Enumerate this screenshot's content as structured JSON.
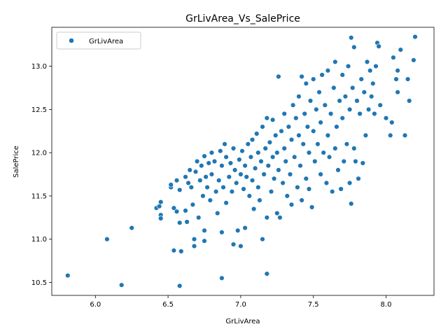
{
  "chart_data": {
    "type": "scatter",
    "title": "GrLivArea_Vs_SalePrice",
    "xlabel": "GrLivArea",
    "ylabel": "SalePrice",
    "xlim": [
      5.7,
      8.33
    ],
    "ylim": [
      10.35,
      13.45
    ],
    "xticks": [
      6.0,
      6.5,
      7.0,
      7.5,
      8.0
    ],
    "yticks": [
      10.5,
      11.0,
      11.5,
      12.0,
      12.5,
      13.0
    ],
    "xtick_labels": [
      "6.0",
      "6.5",
      "7.0",
      "7.5",
      "8.0"
    ],
    "ytick_labels": [
      "10.5",
      "11.0",
      "11.5",
      "12.0",
      "12.5",
      "13.0"
    ],
    "legend": {
      "placement": "top-left",
      "entries": [
        "GrLivArea"
      ]
    },
    "grid": false,
    "marker_color": "#1f77b4",
    "series": [
      {
        "name": "GrLivArea",
        "points": [
          [
            5.81,
            10.58
          ],
          [
            6.08,
            11.0
          ],
          [
            6.18,
            10.47
          ],
          [
            6.25,
            11.13
          ],
          [
            6.42,
            11.36
          ],
          [
            6.44,
            11.38
          ],
          [
            6.45,
            11.43
          ],
          [
            6.45,
            11.28
          ],
          [
            6.45,
            11.24
          ],
          [
            6.52,
            11.6
          ],
          [
            6.52,
            11.63
          ],
          [
            6.54,
            11.36
          ],
          [
            6.54,
            10.87
          ],
          [
            6.56,
            11.68
          ],
          [
            6.56,
            11.32
          ],
          [
            6.58,
            11.57
          ],
          [
            6.58,
            10.46
          ],
          [
            6.58,
            11.19
          ],
          [
            6.59,
            10.86
          ],
          [
            6.62,
            11.72
          ],
          [
            6.62,
            11.33
          ],
          [
            6.63,
            11.2
          ],
          [
            6.64,
            11.65
          ],
          [
            6.65,
            11.8
          ],
          [
            6.66,
            11.6
          ],
          [
            6.67,
            11.4
          ],
          [
            6.68,
            11.0
          ],
          [
            6.68,
            10.92
          ],
          [
            6.69,
            11.78
          ],
          [
            6.7,
            11.9
          ],
          [
            6.71,
            11.25
          ],
          [
            6.72,
            11.68
          ],
          [
            6.73,
            11.85
          ],
          [
            6.74,
            11.5
          ],
          [
            6.75,
            11.96
          ],
          [
            6.75,
            11.1
          ],
          [
            6.75,
            10.98
          ],
          [
            6.76,
            11.72
          ],
          [
            6.77,
            11.6
          ],
          [
            6.78,
            11.88
          ],
          [
            6.79,
            11.45
          ],
          [
            6.8,
            12.0
          ],
          [
            6.8,
            11.75
          ],
          [
            6.82,
            11.9
          ],
          [
            6.83,
            11.55
          ],
          [
            6.84,
            11.3
          ],
          [
            6.85,
            11.68
          ],
          [
            6.86,
            12.02
          ],
          [
            6.87,
            11.85
          ],
          [
            6.87,
            11.08
          ],
          [
            6.87,
            10.55
          ],
          [
            6.88,
            11.6
          ],
          [
            6.89,
            12.1
          ],
          [
            6.9,
            11.95
          ],
          [
            6.9,
            11.42
          ],
          [
            6.92,
            11.72
          ],
          [
            6.93,
            11.88
          ],
          [
            6.94,
            11.55
          ],
          [
            6.95,
            10.94
          ],
          [
            6.95,
            12.05
          ],
          [
            6.96,
            11.8
          ],
          [
            6.97,
            11.65
          ],
          [
            6.98,
            11.1
          ],
          [
            6.99,
            11.92
          ],
          [
            7.0,
            10.92
          ],
          [
            7.0,
            11.75
          ],
          [
            7.01,
            12.02
          ],
          [
            7.02,
            11.58
          ],
          [
            7.03,
            11.13
          ],
          [
            7.03,
            11.85
          ],
          [
            7.04,
            11.72
          ],
          [
            7.05,
            12.1
          ],
          [
            7.06,
            11.5
          ],
          [
            7.07,
            11.95
          ],
          [
            7.08,
            12.15
          ],
          [
            7.08,
            11.68
          ],
          [
            7.09,
            11.35
          ],
          [
            7.1,
            11.82
          ],
          [
            7.11,
            12.22
          ],
          [
            7.12,
            11.6
          ],
          [
            7.12,
            12.0
          ],
          [
            7.13,
            11.45
          ],
          [
            7.14,
            11.9
          ],
          [
            7.15,
            11.0
          ],
          [
            7.15,
            12.3
          ],
          [
            7.16,
            11.75
          ],
          [
            7.17,
            12.05
          ],
          [
            7.18,
            10.6
          ],
          [
            7.18,
            11.25
          ],
          [
            7.18,
            12.4
          ],
          [
            7.19,
            11.85
          ],
          [
            7.2,
            12.12
          ],
          [
            7.21,
            11.55
          ],
          [
            7.22,
            11.95
          ],
          [
            7.22,
            12.38
          ],
          [
            7.23,
            11.7
          ],
          [
            7.24,
            12.2
          ],
          [
            7.25,
            11.3
          ],
          [
            7.25,
            12.0
          ],
          [
            7.26,
            12.88
          ],
          [
            7.26,
            11.8
          ],
          [
            7.27,
            11.25
          ],
          [
            7.28,
            12.25
          ],
          [
            7.29,
            11.65
          ],
          [
            7.3,
            12.05
          ],
          [
            7.3,
            12.45
          ],
          [
            7.31,
            11.9
          ],
          [
            7.32,
            11.5
          ],
          [
            7.33,
            12.3
          ],
          [
            7.34,
            11.75
          ],
          [
            7.35,
            12.15
          ],
          [
            7.35,
            11.4
          ],
          [
            7.36,
            12.55
          ],
          [
            7.37,
            11.95
          ],
          [
            7.38,
            12.4
          ],
          [
            7.39,
            11.6
          ],
          [
            7.4,
            12.2
          ],
          [
            7.4,
            12.65
          ],
          [
            7.41,
            11.85
          ],
          [
            7.42,
            12.88
          ],
          [
            7.42,
            11.45
          ],
          [
            7.43,
            12.1
          ],
          [
            7.44,
            12.45
          ],
          [
            7.45,
            11.7
          ],
          [
            7.45,
            12.8
          ],
          [
            7.46,
            12.3
          ],
          [
            7.47,
            11.58
          ],
          [
            7.47,
            12.0
          ],
          [
            7.48,
            12.6
          ],
          [
            7.49,
            11.37
          ],
          [
            7.5,
            12.25
          ],
          [
            7.5,
            12.85
          ],
          [
            7.51,
            11.9
          ],
          [
            7.52,
            12.5
          ],
          [
            7.53,
            12.1
          ],
          [
            7.54,
            12.7
          ],
          [
            7.55,
            11.75
          ],
          [
            7.55,
            12.35
          ],
          [
            7.56,
            12.9
          ],
          [
            7.57,
            12.0
          ],
          [
            7.58,
            12.55
          ],
          [
            7.59,
            11.65
          ],
          [
            7.6,
            12.2
          ],
          [
            7.6,
            12.95
          ],
          [
            7.61,
            11.95
          ],
          [
            7.62,
            12.45
          ],
          [
            7.63,
            11.55
          ],
          [
            7.64,
            12.75
          ],
          [
            7.65,
            12.05
          ],
          [
            7.65,
            13.05
          ],
          [
            7.66,
            12.3
          ],
          [
            7.67,
            11.8
          ],
          [
            7.68,
            12.6
          ],
          [
            7.69,
            11.58
          ],
          [
            7.7,
            12.4
          ],
          [
            7.7,
            12.9
          ],
          [
            7.71,
            11.9
          ],
          [
            7.72,
            12.65
          ],
          [
            7.73,
            12.1
          ],
          [
            7.74,
            13.0
          ],
          [
            7.75,
            11.65
          ],
          [
            7.75,
            12.5
          ],
          [
            7.76,
            11.41
          ],
          [
            7.76,
            13.33
          ],
          [
            7.77,
            12.75
          ],
          [
            7.78,
            13.22
          ],
          [
            7.78,
            12.05
          ],
          [
            7.79,
            11.9
          ],
          [
            7.8,
            12.6
          ],
          [
            7.81,
            11.7
          ],
          [
            7.82,
            12.45
          ],
          [
            7.83,
            12.85
          ],
          [
            7.84,
            11.88
          ],
          [
            7.85,
            12.7
          ],
          [
            7.86,
            12.2
          ],
          [
            7.87,
            13.05
          ],
          [
            7.88,
            12.5
          ],
          [
            7.89,
            12.95
          ],
          [
            7.9,
            12.65
          ],
          [
            7.91,
            12.8
          ],
          [
            7.92,
            12.45
          ],
          [
            7.93,
            13.0
          ],
          [
            7.94,
            13.27
          ],
          [
            7.95,
            13.23
          ],
          [
            7.96,
            12.55
          ],
          [
            8.0,
            12.4
          ],
          [
            8.03,
            12.2
          ],
          [
            8.04,
            12.35
          ],
          [
            8.05,
            13.1
          ],
          [
            8.07,
            12.85
          ],
          [
            8.08,
            12.7
          ],
          [
            8.08,
            12.95
          ],
          [
            8.1,
            13.19
          ],
          [
            8.13,
            12.2
          ],
          [
            8.15,
            12.85
          ],
          [
            8.16,
            12.6
          ],
          [
            8.19,
            13.07
          ],
          [
            8.2,
            13.34
          ]
        ]
      }
    ]
  }
}
